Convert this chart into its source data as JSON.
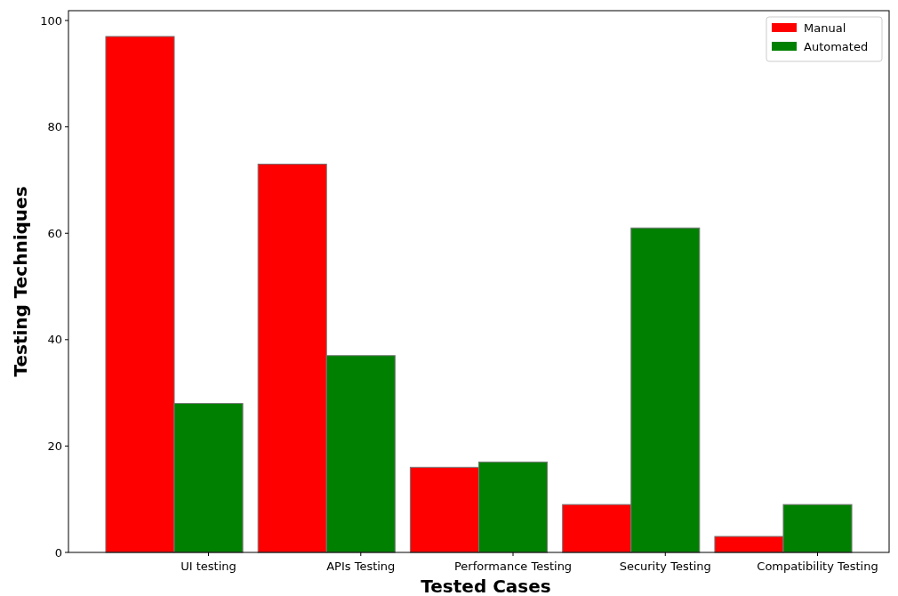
{
  "chart_data": {
    "type": "bar",
    "xlabel": "Tested Cases",
    "ylabel": "Testing Techniques",
    "categories": [
      "UI testing",
      "APIs Testing",
      "Performance Testing",
      "Security Testing",
      "Compatibility Testing"
    ],
    "series": [
      {
        "name": "Manual",
        "color": "#ff0000",
        "values": [
          97,
          73,
          16,
          9,
          3
        ]
      },
      {
        "name": "Automated",
        "color": "#008000",
        "values": [
          28,
          37,
          17,
          61,
          9
        ]
      }
    ],
    "ylim": [
      0,
      101.85
    ],
    "yticks": [
      0,
      20,
      40,
      60,
      80,
      100
    ],
    "legend": "top right"
  }
}
